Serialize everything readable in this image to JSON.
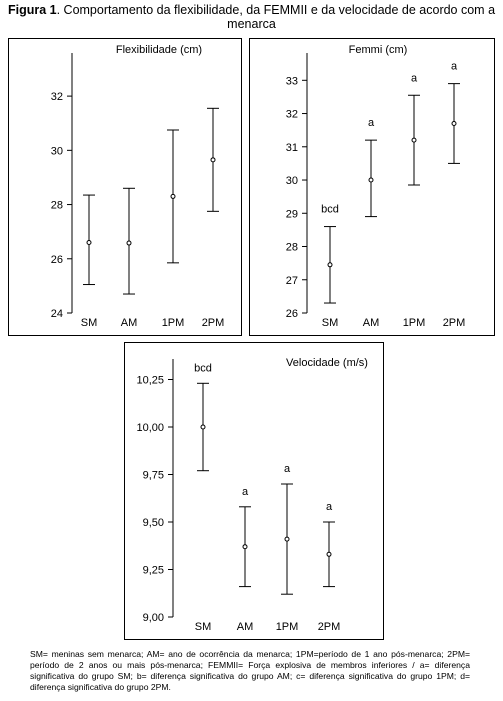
{
  "figure": {
    "label": "Figura 1",
    "title_rest": ". Comportamento da flexibilidade, da FEMMII e da velocidade de acordo com a menarca"
  },
  "chart_data": [
    {
      "type": "errorbar",
      "title": "Flexibilidade (cm)",
      "categories": [
        "SM",
        "AM",
        "1PM",
        "2PM"
      ],
      "ylim": [
        24,
        33
      ],
      "yticks": [
        24,
        26,
        28,
        30,
        32
      ],
      "ytick_labels": [
        "24",
        "26",
        "28",
        "30",
        "32"
      ],
      "points": [
        {
          "mean": 26.6,
          "low": 25.05,
          "high": 28.35,
          "label": ""
        },
        {
          "mean": 26.58,
          "low": 24.7,
          "high": 28.6,
          "label": ""
        },
        {
          "mean": 28.3,
          "low": 25.85,
          "high": 30.75,
          "label": ""
        },
        {
          "mean": 29.65,
          "low": 27.75,
          "high": 31.55,
          "label": ""
        }
      ]
    },
    {
      "type": "errorbar",
      "title": "Femmi (cm)",
      "categories": [
        "SM",
        "AM",
        "1PM",
        "2PM"
      ],
      "ylim": [
        26,
        33.4
      ],
      "yticks": [
        26,
        27,
        28,
        29,
        30,
        31,
        32,
        33
      ],
      "ytick_labels": [
        "26",
        "27",
        "28",
        "29",
        "30",
        "31",
        "32",
        "33"
      ],
      "points": [
        {
          "mean": 27.45,
          "low": 26.3,
          "high": 28.6,
          "label": "bcd"
        },
        {
          "mean": 30.0,
          "low": 28.9,
          "high": 31.2,
          "label": "a"
        },
        {
          "mean": 31.2,
          "low": 29.85,
          "high": 32.55,
          "label": "a"
        },
        {
          "mean": 31.7,
          "low": 30.5,
          "high": 32.9,
          "label": "a"
        }
      ]
    },
    {
      "type": "errorbar",
      "title": "Velocidade (m/s)",
      "categories": [
        "SM",
        "AM",
        "1PM",
        "2PM"
      ],
      "ylim": [
        9.0,
        10.3
      ],
      "yticks": [
        9.0,
        9.25,
        9.5,
        9.75,
        10.0,
        10.25
      ],
      "ytick_labels": [
        "9,00",
        "9,25",
        "9,50",
        "9,75",
        "10,00",
        "10,25"
      ],
      "points": [
        {
          "mean": 10.0,
          "low": 9.77,
          "high": 10.23,
          "label": "bcd"
        },
        {
          "mean": 9.37,
          "low": 9.16,
          "high": 9.58,
          "label": "a"
        },
        {
          "mean": 9.41,
          "low": 9.12,
          "high": 9.7,
          "label": "a"
        },
        {
          "mean": 9.33,
          "low": 9.16,
          "high": 9.5,
          "label": "a"
        }
      ]
    }
  ],
  "caption": "SM= meninas sem menarca; AM= ano de ocorrência da menarca; 1PM=período de 1 ano pós-menarca; 2PM= período de 2 anos ou mais pós-menarca; FEMMII= Força explosiva de membros inferiores / a= diferença significativa do grupo SM; b= diferença significativa do grupo AM; c= diferença significativa do grupo 1PM; d= diferença significativa do grupo 2PM."
}
